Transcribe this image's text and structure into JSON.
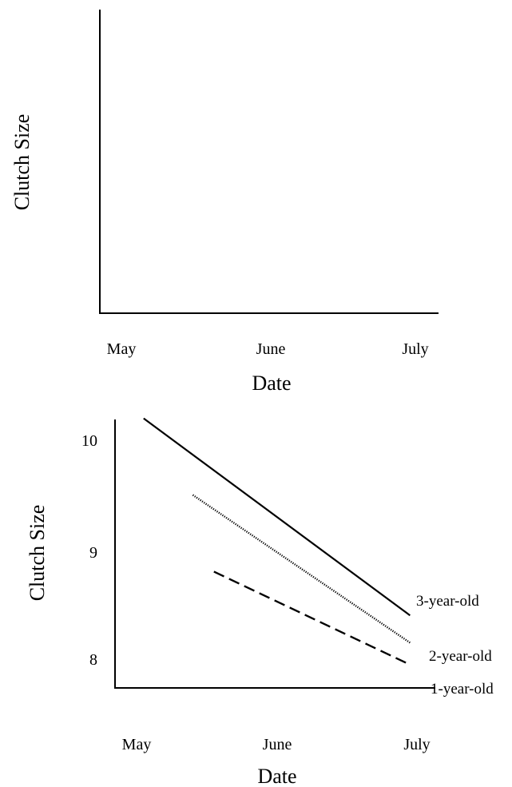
{
  "chart_data": [
    {
      "type": "line",
      "categories": [
        "May",
        "June",
        "July"
      ],
      "xlabel": "Date",
      "ylabel": "Clutch Size",
      "series": []
    },
    {
      "type": "line",
      "categories": [
        "May",
        "June",
        "July"
      ],
      "xlabel": "Date",
      "ylabel": "Clutch Size",
      "yticks": [
        10,
        9,
        8
      ],
      "ylim": [
        7.75,
        10.2
      ],
      "series": [
        {
          "name": "3-year-old",
          "style": "solid",
          "x": [
            0.05,
            1.95
          ],
          "y": [
            10.2,
            8.4
          ]
        },
        {
          "name": "2-year-old",
          "style": "dotted",
          "x": [
            0.4,
            1.95
          ],
          "y": [
            9.5,
            8.15
          ]
        },
        {
          "name": "1-year-old",
          "style": "dashed",
          "x": [
            0.55,
            1.95
          ],
          "y": [
            8.8,
            7.95
          ]
        }
      ]
    }
  ]
}
